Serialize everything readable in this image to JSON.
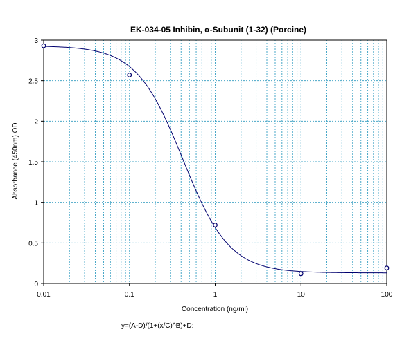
{
  "chart_data": {
    "type": "scatter",
    "title": "EK-034-05 Inhibin, α-Subunit (1-32) (Porcine)",
    "xlabel": "Concentration (ng/ml)",
    "ylabel": "Absorbance (450nm) OD",
    "x_scale": "log",
    "xlim": [
      0.01,
      100
    ],
    "ylim": [
      0,
      3
    ],
    "x_ticks": [
      0.01,
      0.1,
      1,
      10,
      100
    ],
    "x_tick_labels": [
      "0.01",
      "0.1",
      "1",
      "10",
      "100"
    ],
    "y_ticks": [
      0,
      0.5,
      1,
      1.5,
      2,
      2.5,
      3
    ],
    "y_tick_labels": [
      "0",
      "0.5",
      "1",
      "1.5",
      "2",
      "2.5",
      "3"
    ],
    "grid": true,
    "points": {
      "x": [
        0.01,
        0.1,
        1,
        10,
        100
      ],
      "y": [
        2.93,
        2.57,
        0.72,
        0.12,
        0.19
      ]
    },
    "fit": {
      "A": 2.93,
      "B": 1.6,
      "C": 0.42,
      "D": 0.13,
      "equation": "y=(A-D)/(1+(x/C)^B)+D:"
    },
    "colors": {
      "line": "#00006e",
      "marker": "#00006e",
      "grid": "#4aa8c8",
      "axis": "#000000"
    }
  }
}
